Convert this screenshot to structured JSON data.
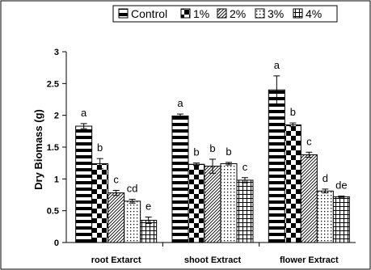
{
  "chart_data": {
    "type": "bar",
    "ylabel": "Dry Biomass (g)",
    "xlabel": "",
    "ylim": [
      0,
      3
    ],
    "yticks": [
      "0",
      "0.5",
      "1",
      "1.5",
      "2",
      "2.5",
      "3"
    ],
    "grid": false,
    "legend_position": "top",
    "categories": [
      "root Extarct",
      "shoot Extract",
      "flower Extract"
    ],
    "series": [
      {
        "name": "Control",
        "pattern": "horizontal-stripes",
        "values": [
          1.83,
          1.99,
          2.4
        ],
        "errors": [
          0.04,
          0.03,
          0.22
        ],
        "labels": [
          "a",
          "a",
          "a"
        ]
      },
      {
        "name": "1%",
        "pattern": "checkerboard",
        "values": [
          1.24,
          1.23,
          1.85
        ],
        "errors": [
          0.08,
          0.02,
          0.03
        ],
        "labels": [
          "b",
          "b",
          "b"
        ]
      },
      {
        "name": "2%",
        "pattern": "diagonal-hatch",
        "values": [
          0.78,
          1.2,
          1.38
        ],
        "errors": [
          0.04,
          0.11,
          0.04
        ],
        "labels": [
          "c",
          "b",
          "c"
        ]
      },
      {
        "name": "3%",
        "pattern": "dots",
        "values": [
          0.65,
          1.24,
          0.81
        ],
        "errors": [
          0.03,
          0.02,
          0.03
        ],
        "labels": [
          "cd",
          "b",
          "d"
        ]
      },
      {
        "name": "4%",
        "pattern": "grid",
        "values": [
          0.35,
          0.98,
          0.72
        ],
        "errors": [
          0.05,
          0.04,
          0.01
        ],
        "labels": [
          "e",
          "c",
          "de"
        ]
      }
    ]
  }
}
